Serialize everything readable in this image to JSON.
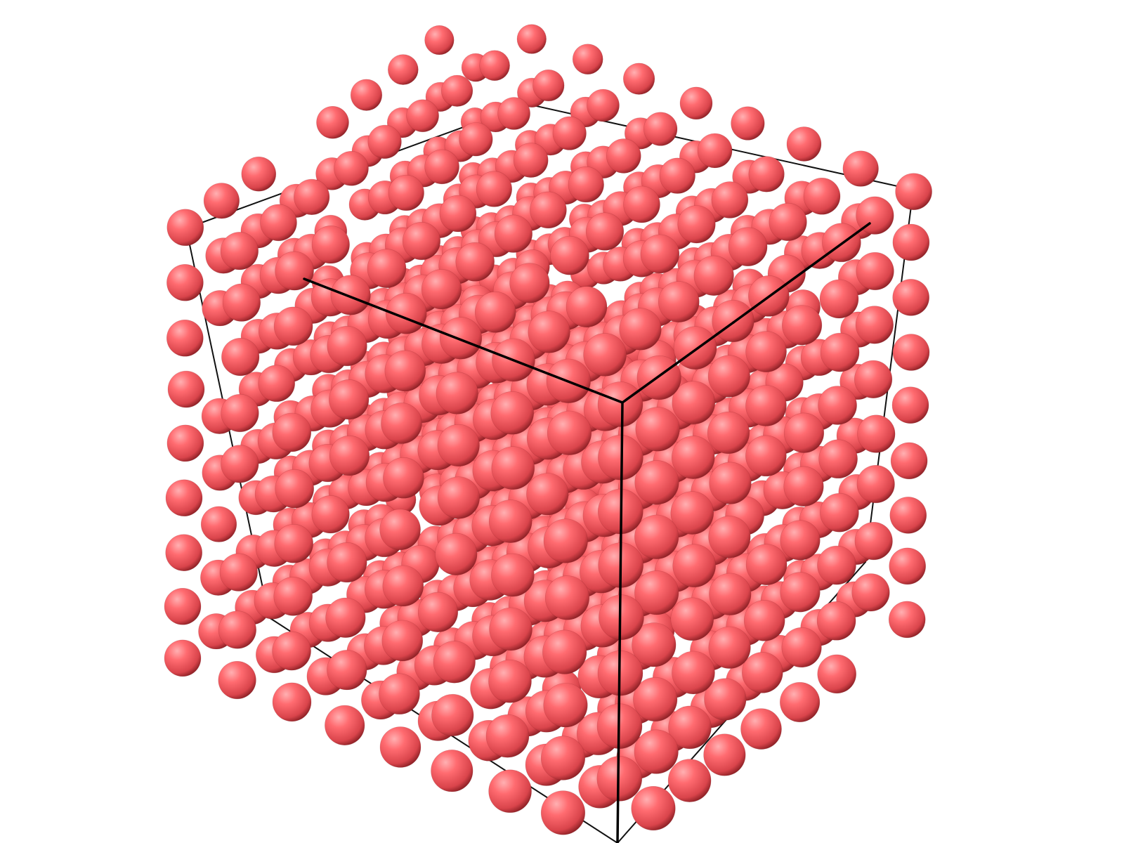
{
  "scene": {
    "subject": "atom-spheres-in-simulation-box",
    "background_color": "#ffffff",
    "atom_color": "#ff5a5f",
    "atom_highlight_color": "#ffb0b2",
    "atom_shadow_color": "#8a1f24",
    "box_edge_color": "#111111",
    "front_edge_color": "#000000",
    "lattice_order": 8
  }
}
